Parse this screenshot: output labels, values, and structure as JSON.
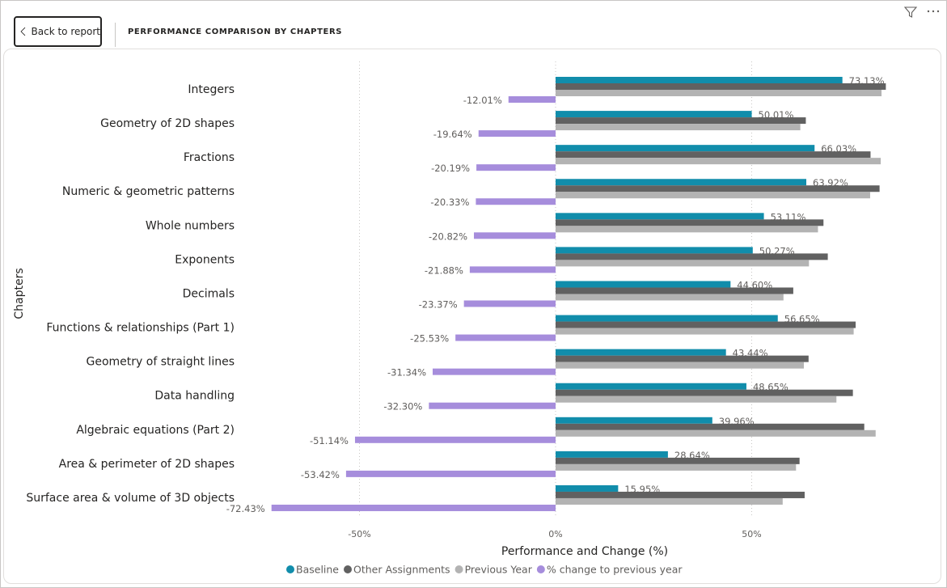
{
  "header": {
    "back_label": "Back to report",
    "title": "PERFORMANCE COMPARISON BY CHAPTERS"
  },
  "icons": {
    "back": "chevron-left-icon",
    "filter": "filter-icon",
    "more": "more-options-icon"
  },
  "colors": {
    "baseline": "#118dab",
    "other": "#616161",
    "previous": "#b3b3b3",
    "change": "#a68ddc"
  },
  "chart_data": {
    "type": "bar",
    "orientation": "horizontal",
    "title": "",
    "xlabel": "Performance and Change (%)",
    "ylabel": "Chapters",
    "xlim": [
      -72,
      84
    ],
    "xticks": [
      -50,
      0,
      50
    ],
    "xtick_labels": [
      "-50%",
      "0%",
      "50%"
    ],
    "grid": "vertical dotted",
    "legend_position": "bottom",
    "categories": [
      "Integers",
      "Geometry of 2D shapes",
      "Fractions",
      "Numeric & geometric patterns",
      "Whole numbers",
      "Exponents",
      "Decimals",
      "Functions & relationships (Part 1)",
      "Geometry of straight lines",
      "Data handling",
      "Algebraic equations (Part 2)",
      "Area & perimeter of 2D shapes",
      "Surface area & volume of 3D objects"
    ],
    "series": [
      {
        "name": "Baseline",
        "color": "#118dab",
        "values": [
          73.13,
          50.01,
          66.03,
          63.92,
          53.11,
          50.27,
          44.6,
          56.65,
          43.44,
          48.65,
          39.96,
          28.64,
          15.95
        ],
        "labels": [
          "73.13%",
          "50.01%",
          "66.03%",
          "63.92%",
          "53.11%",
          "50.27%",
          "44.60%",
          "56.65%",
          "43.44%",
          "48.65%",
          "39.96%",
          "28.64%",
          "15.95%"
        ]
      },
      {
        "name": "Other Assignments",
        "color": "#616161",
        "values": [
          84.2,
          63.8,
          80.3,
          82.6,
          68.3,
          69.4,
          60.6,
          76.5,
          64.5,
          75.8,
          78.7,
          62.2,
          63.5
        ]
      },
      {
        "name": "Previous Year",
        "color": "#b3b3b3",
        "values": [
          83.1,
          62.4,
          82.9,
          80.2,
          66.9,
          64.6,
          58.1,
          76.0,
          63.3,
          71.6,
          81.6,
          61.3,
          57.9
        ]
      },
      {
        "name": "% change to previous year",
        "color": "#a68ddc",
        "values": [
          -12.01,
          -19.64,
          -20.19,
          -20.33,
          -20.82,
          -21.88,
          -23.37,
          -25.53,
          -31.34,
          -32.3,
          -51.14,
          -53.42,
          -72.43
        ],
        "labels": [
          "-12.01%",
          "-19.64%",
          "-20.19%",
          "-20.33%",
          "-20.82%",
          "-21.88%",
          "-23.37%",
          "-25.53%",
          "-31.34%",
          "-32.30%",
          "-51.14%",
          "-53.42%",
          "-72.43%"
        ]
      }
    ]
  }
}
